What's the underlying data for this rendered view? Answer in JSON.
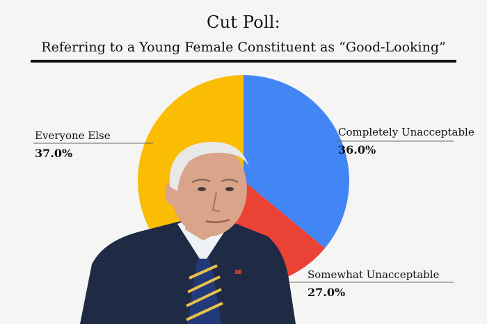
{
  "chart_data": {
    "type": "pie",
    "title": "Cut Poll:",
    "subtitle": "Referring to a Young Female Constituent as “Good-Looking”",
    "slices": [
      {
        "label": "Completely Unacceptable",
        "value": 36.0,
        "display": "36.0%",
        "color": "#4285f4"
      },
      {
        "label": "Somewhat Unacceptable",
        "value": 27.0,
        "display": "27.0%",
        "color": "#ea4335"
      },
      {
        "label": "Everyone Else",
        "value": 37.0,
        "display": "37.0%",
        "color": "#fbbc04"
      }
    ]
  },
  "photo": {
    "subject": "man in dark suit and striped tie",
    "suit_color": "#1f2a44",
    "hair_color": "#e8e8e8",
    "skin_color": "#d9a48a"
  }
}
